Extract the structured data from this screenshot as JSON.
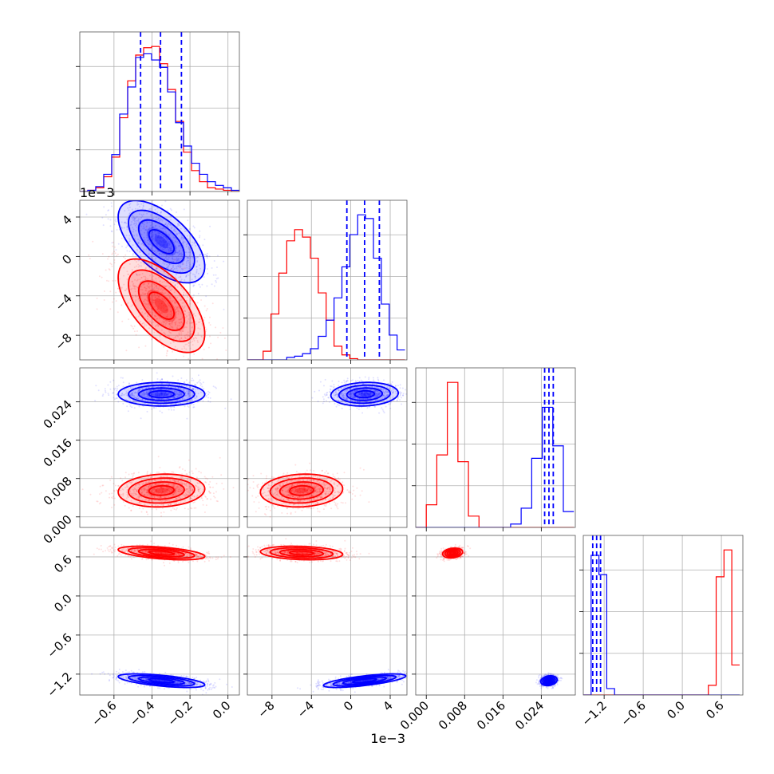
{
  "chart_data": {
    "type": "corner",
    "grid": true,
    "series": [
      {
        "color": "#0000ff"
      },
      {
        "color": "#ff0000"
      }
    ],
    "parameters": [
      {
        "range": [
          -0.78,
          0.06
        ],
        "ticks": [
          -0.6,
          -0.4,
          -0.2,
          0.0
        ],
        "tick_labels": [
          "−0.6",
          "−0.4",
          "−0.2",
          "0.0"
        ],
        "offset_label": ""
      },
      {
        "range": [
          -0.0105,
          0.0057
        ],
        "ticks": [
          -0.008,
          -0.004,
          0.0,
          0.004
        ],
        "tick_labels": [
          "−8",
          "−4",
          "0",
          "4"
        ],
        "offset_label": "1e−3"
      },
      {
        "range": [
          -0.0022,
          0.0311
        ],
        "ticks": [
          0.0,
          0.008,
          0.016,
          0.024
        ],
        "tick_labels": [
          "0.000",
          "0.008",
          "0.016",
          "0.024"
        ],
        "offset_label": ""
      },
      {
        "range": [
          -1.52,
          0.93
        ],
        "ticks": [
          -1.2,
          -0.6,
          0.0,
          0.6
        ],
        "tick_labels": [
          "−1.2",
          "−0.6",
          "0.0",
          "0.6"
        ],
        "offset_label": ""
      }
    ],
    "histograms": [
      {
        "param": 0,
        "bins": [
          -0.78,
          -0.738,
          -0.696,
          -0.654,
          -0.612,
          -0.57,
          -0.528,
          -0.486,
          -0.444,
          -0.402,
          -0.36,
          -0.318,
          -0.276,
          -0.234,
          -0.192,
          -0.15,
          -0.108,
          -0.066,
          -0.024,
          0.018,
          0.06
        ],
        "counts": {
          "blue": [
            0,
            1,
            4,
            14,
            30,
            63,
            85,
            109,
            112,
            107,
            101,
            81,
            56,
            37,
            23,
            14,
            8,
            5,
            3,
            1
          ],
          "red": [
            0,
            1,
            3,
            12,
            28,
            60,
            90,
            111,
            117,
            118,
            104,
            83,
            57,
            32,
            17,
            8,
            3,
            2,
            1,
            0
          ]
        },
        "quantiles": [
          -0.46,
          -0.355,
          -0.245
        ]
      },
      {
        "param": 1,
        "bins": [
          -0.0105,
          -0.0097,
          -0.0089,
          -0.0081,
          -0.0073,
          -0.0065,
          -0.0057,
          -0.0049,
          -0.0041,
          -0.0033,
          -0.0025,
          -0.0017,
          -0.0009,
          -0.0001,
          0.0007,
          0.0015,
          0.0023,
          0.0031,
          0.0039,
          0.0047,
          0.0055
        ],
        "counts": {
          "blue": [
            0,
            0,
            0,
            0,
            0,
            2,
            3,
            5,
            9,
            19,
            32,
            50,
            75,
            101,
            117,
            114,
            82,
            45,
            20,
            8
          ],
          "red": [
            0,
            0,
            7,
            37,
            70,
            96,
            105,
            99,
            82,
            54,
            32,
            11,
            4,
            1,
            0,
            0,
            0,
            0,
            0,
            0
          ]
        },
        "quantiles": [
          -0.0004,
          0.0014,
          0.0029
        ]
      },
      {
        "param": 2,
        "bins": [
          -0.0022,
          0.0,
          0.0022,
          0.0044,
          0.0066,
          0.0088,
          0.011,
          0.0132,
          0.0154,
          0.0176,
          0.0198,
          0.022,
          0.0242,
          0.0264,
          0.0286,
          0.0308
        ],
        "counts": {
          "blue": [
            0,
            0,
            0,
            0,
            0,
            0,
            0,
            0,
            0,
            3,
            17,
            61,
            106,
            72,
            14
          ],
          "red": [
            0,
            20,
            64,
            128,
            58,
            10,
            0,
            0,
            0,
            0,
            0,
            0,
            0,
            0,
            0
          ]
        },
        "quantiles": [
          0.0247,
          0.0256,
          0.0265
        ]
      },
      {
        "param": 3,
        "bins": [
          -1.52,
          -1.4,
          -1.28,
          -1.16,
          -1.04,
          -0.92,
          -0.8,
          -0.68,
          -0.56,
          -0.44,
          -0.32,
          -0.2,
          -0.08,
          0.04,
          0.16,
          0.28,
          0.4,
          0.52,
          0.64,
          0.76,
          0.88
        ],
        "counts": {
          "blue": [
            0,
            130,
            112,
            6,
            0,
            0,
            0,
            0,
            0,
            0,
            0,
            0,
            0,
            0,
            0,
            0,
            0,
            0,
            0,
            0
          ],
          "red": [
            0,
            0,
            0,
            0,
            0,
            0,
            0,
            0,
            0,
            0,
            0,
            0,
            0,
            0,
            0,
            0,
            9,
            110,
            135,
            28
          ]
        },
        "quantiles": [
          -1.375,
          -1.315,
          -1.255
        ]
      }
    ],
    "pairs": [
      {
        "x_param": 0,
        "y_param": 1,
        "blue": {
          "mean": [
            -0.35,
            0.0015
          ],
          "sd": [
            0.12,
            0.0022
          ],
          "corr": -0.6
        },
        "red": {
          "mean": [
            -0.35,
            -0.005
          ],
          "sd": [
            0.12,
            0.0025
          ],
          "corr": -0.6
        }
      },
      {
        "x_param": 0,
        "y_param": 2,
        "blue": {
          "mean": [
            -0.35,
            0.0256
          ],
          "sd": [
            0.12,
            0.0013
          ],
          "corr": 0.0
        },
        "red": {
          "mean": [
            -0.35,
            0.0055
          ],
          "sd": [
            0.12,
            0.0018
          ],
          "corr": 0.1
        }
      },
      {
        "x_param": 1,
        "y_param": 2,
        "blue": {
          "mean": [
            0.0014,
            0.0256
          ],
          "sd": [
            0.0018,
            0.0013
          ],
          "corr": 0.1
        },
        "red": {
          "mean": [
            -0.005,
            0.0055
          ],
          "sd": [
            0.0022,
            0.0018
          ],
          "corr": 0.1
        }
      },
      {
        "x_param": 0,
        "y_param": 3,
        "blue": {
          "mean": [
            -0.35,
            -1.3
          ],
          "sd": [
            0.12,
            0.055
          ],
          "corr": -0.6
        },
        "red": {
          "mean": [
            -0.35,
            0.66
          ],
          "sd": [
            0.12,
            0.055
          ],
          "corr": -0.5
        }
      },
      {
        "x_param": 1,
        "y_param": 3,
        "blue": {
          "mean": [
            0.0014,
            -1.3
          ],
          "sd": [
            0.0022,
            0.055
          ],
          "corr": 0.7
        },
        "red": {
          "mean": [
            -0.005,
            0.66
          ],
          "sd": [
            0.0022,
            0.055
          ],
          "corr": -0.2
        }
      },
      {
        "x_param": 2,
        "y_param": 3,
        "blue": {
          "mean": [
            0.0256,
            -1.3
          ],
          "sd": [
            0.0009,
            0.04
          ],
          "corr": 0.2
        },
        "red": {
          "mean": [
            0.0055,
            0.66
          ],
          "sd": [
            0.0011,
            0.04
          ],
          "corr": 0.2
        }
      }
    ]
  }
}
